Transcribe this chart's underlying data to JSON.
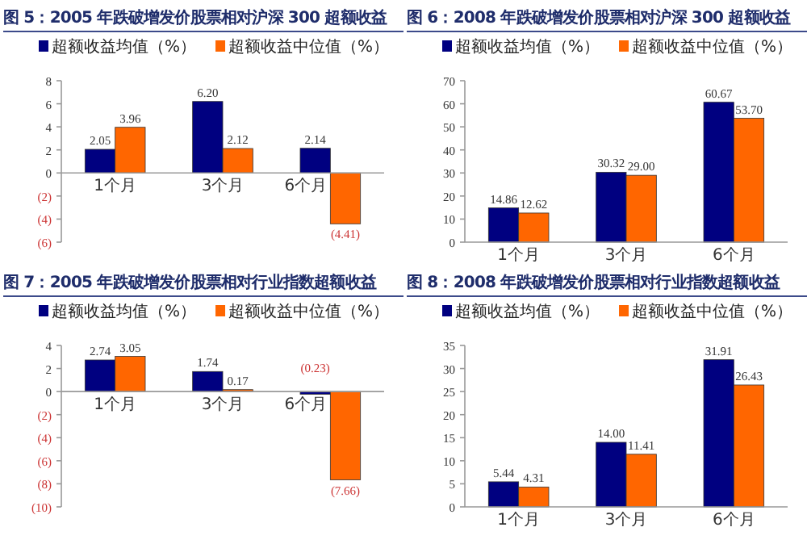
{
  "chart_data": [
    {
      "type": "bar",
      "title": "图 5：2005 年跌破增发价股票相对沪深 300 超额收益",
      "categories": [
        "1个月",
        "3个月",
        "6个月"
      ],
      "series": [
        {
          "name": "超额收益均值（%）",
          "color": "#000080",
          "values": [
            2.05,
            6.2,
            2.14
          ],
          "value_labels": [
            "2.05",
            "6.20",
            "2.14"
          ]
        },
        {
          "name": "超额收益中位值（%）",
          "color": "#ff6600",
          "values": [
            3.96,
            2.12,
            -4.41
          ],
          "value_labels": [
            "3.96",
            "2.12",
            "(4.41)"
          ]
        }
      ],
      "ylim": [
        -6,
        8
      ],
      "yticks": [
        {
          "value": -6,
          "label": "(6)"
        },
        {
          "value": -4,
          "label": "(4)"
        },
        {
          "value": -2,
          "label": "(2)"
        },
        0,
        2,
        4,
        6,
        8
      ],
      "legend": "top",
      "grid": false
    },
    {
      "type": "bar",
      "title": "图 6：2008 年跌破增发价股票相对沪深 300 超额收益",
      "categories": [
        "1个月",
        "3个月",
        "6个月"
      ],
      "series": [
        {
          "name": "超额收益均值（%）",
          "color": "#000080",
          "values": [
            14.86,
            30.32,
            60.67
          ],
          "value_labels": [
            "14.86",
            "30.32",
            "60.67"
          ]
        },
        {
          "name": "超额收益中位值（%）",
          "color": "#ff6600",
          "values": [
            12.62,
            29.0,
            53.7
          ],
          "value_labels": [
            "12.62",
            "29.00",
            "53.70"
          ]
        }
      ],
      "ylim": [
        0,
        70
      ],
      "yticks": [
        0,
        10,
        20,
        30,
        40,
        50,
        60,
        70
      ],
      "legend": "top",
      "grid": false
    },
    {
      "type": "bar",
      "title": "图 7：2005 年跌破增发价股票相对行业指数超额收益",
      "categories": [
        "1个月",
        "3个月",
        "6个月"
      ],
      "series": [
        {
          "name": "超额收益均值（%）",
          "color": "#000080",
          "values": [
            2.74,
            1.74,
            -0.23
          ],
          "value_labels": [
            "2.74",
            "1.74",
            "(0.23)"
          ]
        },
        {
          "name": "超额收益中位值（%）",
          "color": "#ff6600",
          "values": [
            3.05,
            0.17,
            -7.66
          ],
          "value_labels": [
            "3.05",
            "0.17",
            "(7.66)"
          ]
        }
      ],
      "ylim": [
        -10,
        4
      ],
      "yticks": [
        {
          "value": -10,
          "label": "(10)"
        },
        {
          "value": -8,
          "label": "(8)"
        },
        {
          "value": -6,
          "label": "(6)"
        },
        {
          "value": -4,
          "label": "(4)"
        },
        {
          "value": -2,
          "label": "(2)"
        },
        0,
        2,
        4
      ],
      "legend": "top",
      "grid": false
    },
    {
      "type": "bar",
      "title": "图 8：2008 年跌破增发价股票相对行业指数超额收益",
      "categories": [
        "1个月",
        "3个月",
        "6个月"
      ],
      "series": [
        {
          "name": "超额收益均值（%）",
          "color": "#000080",
          "values": [
            5.44,
            14.0,
            31.91
          ],
          "value_labels": [
            "5.44",
            "14.00",
            "31.91"
          ]
        },
        {
          "name": "超额收益中位值（%）",
          "color": "#ff6600",
          "values": [
            4.31,
            11.41,
            26.43
          ],
          "value_labels": [
            "4.31",
            "11.41",
            "26.43"
          ]
        }
      ],
      "ylim": [
        0,
        35
      ],
      "yticks": [
        0,
        5,
        10,
        15,
        20,
        25,
        30,
        35
      ],
      "legend": "top",
      "grid": false
    }
  ]
}
